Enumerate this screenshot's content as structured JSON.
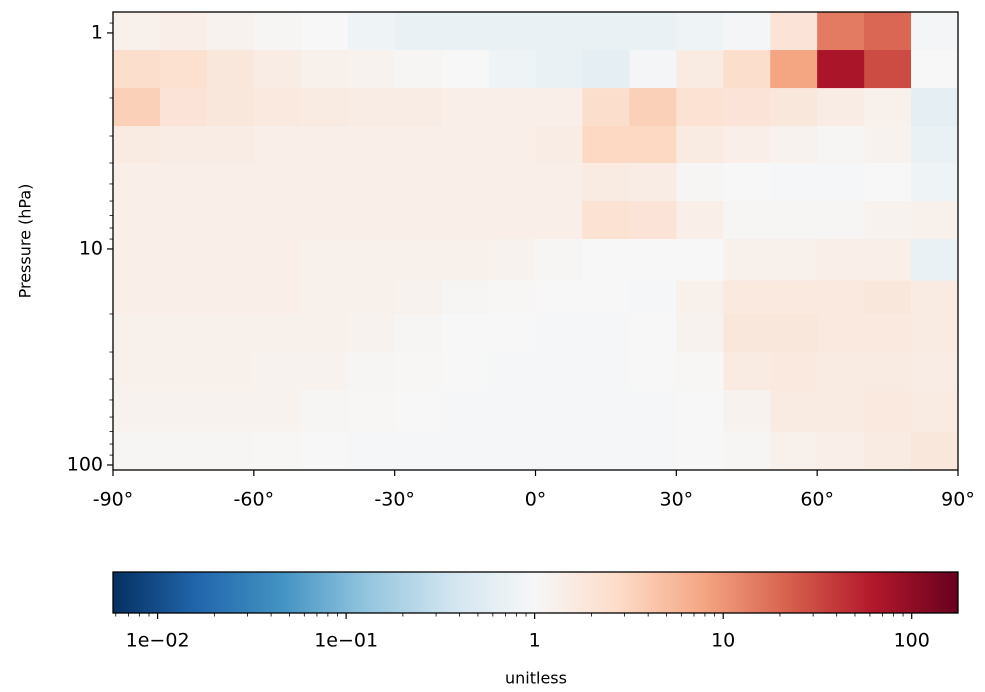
{
  "chart_data": {
    "type": "heatmap",
    "xlabel": null,
    "ylabel": "Pressure (hPa)",
    "colorbar_label": "unitless",
    "colormap": "RdBu_r",
    "x_bins": [
      -90,
      -80,
      -70,
      -60,
      -50,
      -40,
      -30,
      -20,
      -10,
      0,
      10,
      20,
      30,
      40,
      50,
      60,
      70,
      80,
      90
    ],
    "y_bins": [
      0.8,
      1.2,
      1.8,
      2.7,
      4,
      6,
      9,
      14,
      20,
      30,
      45,
      70,
      105
    ],
    "z": [
      [
        1.3,
        1.4,
        1.2,
        1.1,
        1.0,
        0.8,
        0.7,
        0.7,
        0.7,
        0.7,
        0.7,
        0.7,
        0.8,
        0.9,
        2,
        15,
        20,
        0.9
      ],
      [
        2.5,
        2.3,
        1.8,
        1.5,
        1.3,
        1.2,
        1.1,
        1.0,
        0.8,
        0.7,
        0.6,
        0.9,
        1.6,
        2.5,
        8,
        70,
        30,
        1.0
      ],
      [
        3.5,
        2.0,
        1.8,
        1.7,
        1.6,
        1.5,
        1.5,
        1.4,
        1.4,
        1.4,
        2.5,
        3.5,
        2.2,
        2.0,
        1.8,
        1.5,
        1.3,
        0.6
      ],
      [
        1.6,
        1.5,
        1.5,
        1.4,
        1.4,
        1.4,
        1.4,
        1.4,
        1.4,
        1.5,
        3,
        3,
        1.6,
        1.4,
        1.2,
        1.1,
        1.2,
        0.7
      ],
      [
        1.4,
        1.4,
        1.4,
        1.4,
        1.4,
        1.4,
        1.4,
        1.4,
        1.4,
        1.4,
        1.6,
        1.5,
        1.1,
        1.0,
        0.95,
        0.95,
        1.0,
        0.8
      ],
      [
        1.4,
        1.4,
        1.4,
        1.4,
        1.4,
        1.4,
        1.4,
        1.4,
        1.4,
        1.4,
        2.2,
        2.0,
        1.4,
        1.1,
        1.1,
        1.1,
        1.2,
        1.3
      ],
      [
        1.4,
        1.4,
        1.4,
        1.4,
        1.3,
        1.3,
        1.3,
        1.3,
        1.2,
        1.1,
        1.0,
        1.0,
        1.0,
        1.3,
        1.3,
        1.4,
        1.4,
        0.7
      ],
      [
        1.4,
        1.4,
        1.4,
        1.4,
        1.3,
        1.3,
        1.2,
        1.1,
        1.05,
        1.0,
        1.0,
        0.95,
        1.3,
        1.7,
        1.7,
        1.7,
        1.8,
        1.6
      ],
      [
        1.3,
        1.3,
        1.3,
        1.3,
        1.3,
        1.2,
        1.1,
        1.0,
        1.0,
        0.95,
        0.95,
        1.0,
        1.2,
        1.8,
        1.8,
        1.7,
        1.7,
        1.6
      ],
      [
        1.3,
        1.3,
        1.3,
        1.2,
        1.2,
        1.1,
        1.05,
        1.0,
        0.95,
        0.95,
        0.95,
        1.0,
        1.05,
        1.6,
        1.7,
        1.6,
        1.6,
        1.5
      ],
      [
        1.2,
        1.2,
        1.2,
        1.2,
        1.1,
        1.05,
        1.0,
        0.95,
        0.95,
        0.95,
        0.95,
        0.97,
        1.0,
        1.2,
        1.6,
        1.6,
        1.7,
        1.6
      ],
      [
        1.1,
        1.1,
        1.1,
        1.05,
        1.0,
        0.97,
        0.95,
        0.95,
        0.95,
        0.95,
        0.95,
        0.97,
        1.0,
        1.1,
        1.3,
        1.4,
        1.6,
        1.8
      ]
    ],
    "xlim": [
      -90,
      90
    ],
    "xticks": [
      {
        "value": -90,
        "label": "-90°"
      },
      {
        "value": -60,
        "label": "-60°"
      },
      {
        "value": -30,
        "label": "-30°"
      },
      {
        "value": 0,
        "label": "0°"
      },
      {
        "value": 30,
        "label": "30°"
      },
      {
        "value": 60,
        "label": "60°"
      },
      {
        "value": 90,
        "label": "90°"
      }
    ],
    "ylim": [
      0.8,
      105.5
    ],
    "y_log": true,
    "yticks": [
      1,
      10,
      100
    ],
    "yticks_minor": [
      0.9,
      2,
      3,
      4,
      5,
      6,
      7,
      8,
      9,
      20,
      30,
      40,
      50,
      60,
      70,
      80,
      90
    ],
    "clim": [
      0.0058,
      176
    ],
    "c_log": true,
    "cticks": [
      {
        "value": 0.01,
        "label": "1e−02"
      },
      {
        "value": 0.1,
        "label": "1e−01"
      },
      1,
      10,
      100
    ],
    "cticks_minor": [
      0.006,
      0.007,
      0.008,
      0.009,
      0.02,
      0.03,
      0.04,
      0.05,
      0.06,
      0.07,
      0.08,
      0.09,
      0.2,
      0.3,
      0.4,
      0.5,
      0.6,
      0.7,
      0.8,
      0.9,
      2,
      3,
      4,
      5,
      6,
      7,
      8,
      9,
      20,
      30,
      40,
      50,
      60,
      70,
      80,
      90
    ]
  }
}
